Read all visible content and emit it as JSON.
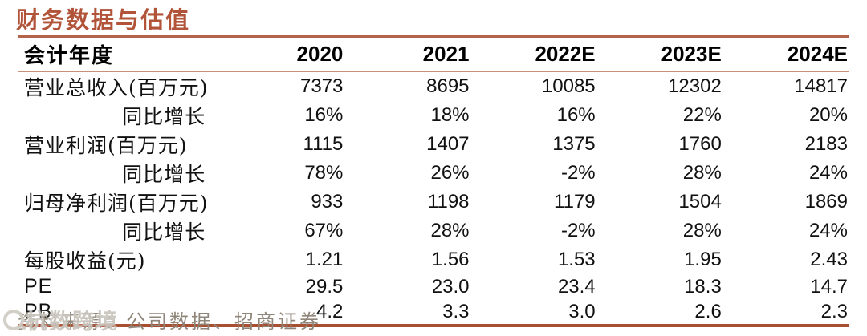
{
  "title": "财务数据与估值",
  "colors": {
    "title": "#b2543a",
    "rule_top": "#b36349",
    "rule_header": "#c89077",
    "rule_bottom": "#a84e31",
    "body_text": "#111111",
    "footer_text": "#8f8679",
    "watermark": "#c9c5bd"
  },
  "table": {
    "header": {
      "label": "会计年度",
      "years": [
        "2020",
        "2021",
        "2022E",
        "2023E",
        "2024E"
      ]
    },
    "rows": [
      {
        "label": "营业总收入(百万元)",
        "indent": false,
        "values": [
          "7373",
          "8695",
          "10085",
          "12302",
          "14817"
        ]
      },
      {
        "label": "同比增长",
        "indent": true,
        "values": [
          "16%",
          "18%",
          "16%",
          "22%",
          "20%"
        ]
      },
      {
        "label": "营业利润(百万元)",
        "indent": false,
        "values": [
          "1115",
          "1407",
          "1375",
          "1760",
          "2183"
        ]
      },
      {
        "label": "同比增长",
        "indent": true,
        "values": [
          "78%",
          "26%",
          "-2%",
          "28%",
          "24%"
        ]
      },
      {
        "label": "归母净利润(百万元)",
        "indent": false,
        "values": [
          "933",
          "1198",
          "1179",
          "1504",
          "1869"
        ]
      },
      {
        "label": "同比增长",
        "indent": true,
        "values": [
          "67%",
          "28%",
          "-2%",
          "28%",
          "24%"
        ]
      },
      {
        "label": "每股收益(元)",
        "indent": false,
        "values": [
          "1.21",
          "1.56",
          "1.53",
          "1.95",
          "2.43"
        ]
      },
      {
        "label": "PE",
        "indent": false,
        "values": [
          "29.5",
          "23.0",
          "23.4",
          "18.3",
          "14.7"
        ]
      },
      {
        "label": "PB",
        "indent": false,
        "values": [
          "4.2",
          "3.3",
          "3.0",
          "2.6",
          "2.3"
        ]
      }
    ]
  },
  "footer": {
    "source_text": "资料来源：公司数据、招商证券",
    "watermark_text": "杭数跨境"
  }
}
